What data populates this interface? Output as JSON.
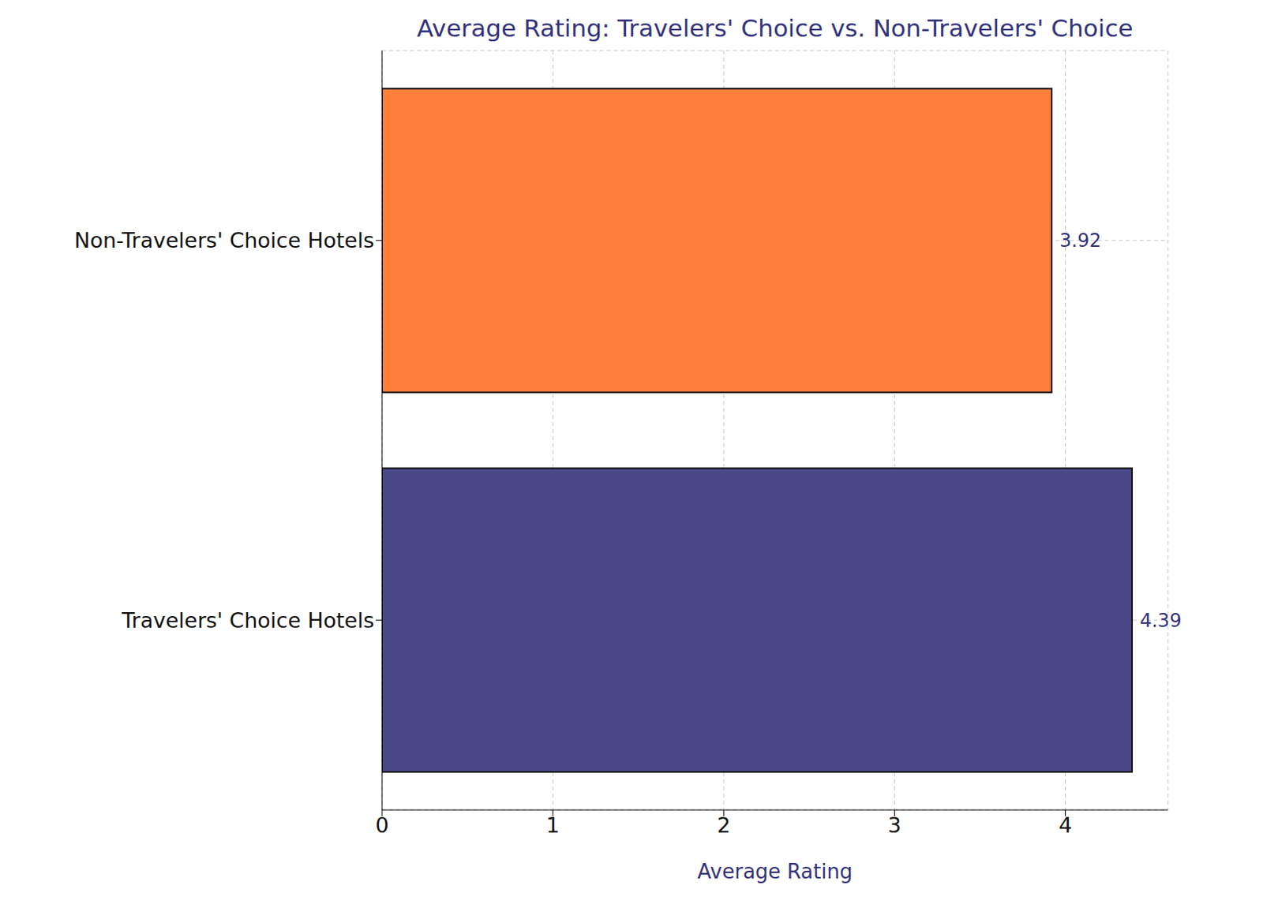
{
  "chart_data": {
    "type": "bar",
    "title": "Average Rating: Travelers' Choice vs. Non-Travelers' Choice",
    "x_label": "Average Rating",
    "orientation": "horizontal",
    "categories": [
      "Non-Travelers' Choice Hotels",
      "Travelers' Choice Hotels"
    ],
    "values": [
      3.92,
      4.39
    ],
    "colors": [
      "#ff7f3a",
      "#4a4886"
    ],
    "xlim": [
      0,
      4.6
    ],
    "xticks": [
      0,
      1,
      2,
      3,
      4
    ],
    "grid": true,
    "data_labels": true
  }
}
